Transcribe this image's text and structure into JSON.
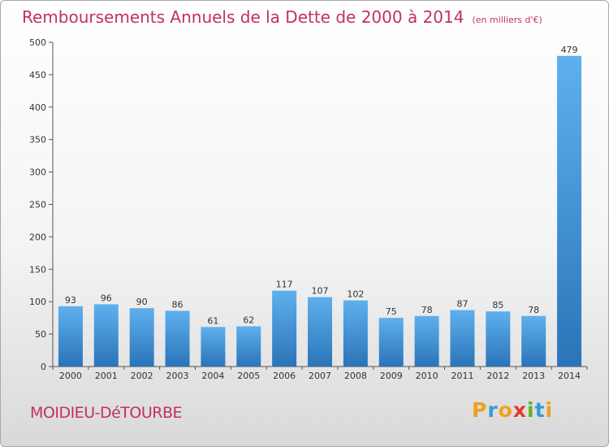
{
  "title": "Remboursements Annuels de la Dette de 2000 à 2014",
  "unit": "(en milliers d'€)",
  "commune": "MOIDIEU-DéTOURBE",
  "logo": {
    "letters": [
      "P",
      "r",
      "o",
      "x",
      "i",
      "t",
      "i"
    ],
    "colors": [
      "#f0a020",
      "#3a9ad9",
      "#f0a020",
      "#e03a2a",
      "#60b030",
      "#3a9ad9",
      "#f0a020"
    ]
  },
  "chart_data": {
    "type": "bar",
    "categories": [
      "2000",
      "2001",
      "2002",
      "2003",
      "2004",
      "2005",
      "2006",
      "2007",
      "2008",
      "2009",
      "2010",
      "2011",
      "2012",
      "2013",
      "2014"
    ],
    "values": [
      93,
      96,
      90,
      86,
      61,
      62,
      117,
      107,
      102,
      75,
      78,
      87,
      85,
      78,
      479
    ],
    "ylim": [
      0,
      500
    ],
    "yticks": [
      0,
      50,
      100,
      150,
      200,
      250,
      300,
      350,
      400,
      450,
      500
    ],
    "grid": false,
    "bar_color": "#3d8fd6"
  }
}
